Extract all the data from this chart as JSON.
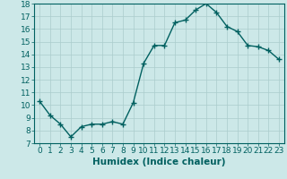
{
  "x": [
    0,
    1,
    2,
    3,
    4,
    5,
    6,
    7,
    8,
    9,
    10,
    11,
    12,
    13,
    14,
    15,
    16,
    17,
    18,
    19,
    20,
    21,
    22,
    23
  ],
  "y": [
    10.3,
    9.2,
    8.5,
    7.5,
    8.3,
    8.5,
    8.5,
    8.7,
    8.5,
    10.2,
    13.3,
    14.7,
    14.7,
    16.5,
    16.7,
    17.5,
    18.0,
    17.3,
    16.2,
    15.8,
    14.7,
    14.6,
    14.3,
    13.6
  ],
  "line_color": "#006060",
  "marker": "+",
  "marker_size": 4,
  "marker_linewidth": 1.0,
  "line_width": 1.0,
  "bg_color": "#cce8e8",
  "grid_color": "#aacccc",
  "xlabel": "Humidex (Indice chaleur)",
  "ylim": [
    7,
    18
  ],
  "xlim": [
    -0.5,
    23.5
  ],
  "yticks": [
    7,
    8,
    9,
    10,
    11,
    12,
    13,
    14,
    15,
    16,
    17,
    18
  ],
  "xticks": [
    0,
    1,
    2,
    3,
    4,
    5,
    6,
    7,
    8,
    9,
    10,
    11,
    12,
    13,
    14,
    15,
    16,
    17,
    18,
    19,
    20,
    21,
    22,
    23
  ],
  "xlabel_fontsize": 7.5,
  "tick_fontsize": 6.5,
  "label_color": "#006060",
  "spine_color": "#006060"
}
